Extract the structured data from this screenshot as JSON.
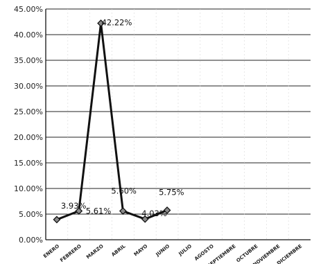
{
  "chart_data": {
    "type": "line",
    "title": "",
    "xlabel": "",
    "ylabel": "",
    "categories": [
      "ENERO",
      "FEBRERO",
      "MARZO",
      "ABRIL",
      "MAYO",
      "JUNIO",
      "JULIO",
      "AGOSTO",
      "SEPTIEMBRE",
      "OCTUBRE",
      "NOVIEMBRE",
      "DICIEMBRE"
    ],
    "series": [
      {
        "values": [
          3.93,
          5.61,
          42.22,
          5.6,
          4.03,
          5.75,
          null,
          null,
          null,
          null,
          null,
          null
        ],
        "labels": [
          "3.93%",
          "5.61%",
          "42.22%",
          "5.60%",
          "4.03%",
          "5.75%",
          "",
          "",
          "",
          "",
          "",
          ""
        ],
        "color": "#111111",
        "marker": "diamond"
      }
    ],
    "ylim": [
      0,
      45
    ],
    "ytick_labels": [
      "0.00%",
      "5.00%",
      "10.00%",
      "15.00%",
      "20.00%",
      "25.00%",
      "30.00%",
      "35.00%",
      "40.00%",
      "45.00%"
    ],
    "grid": true,
    "legend": "none"
  }
}
